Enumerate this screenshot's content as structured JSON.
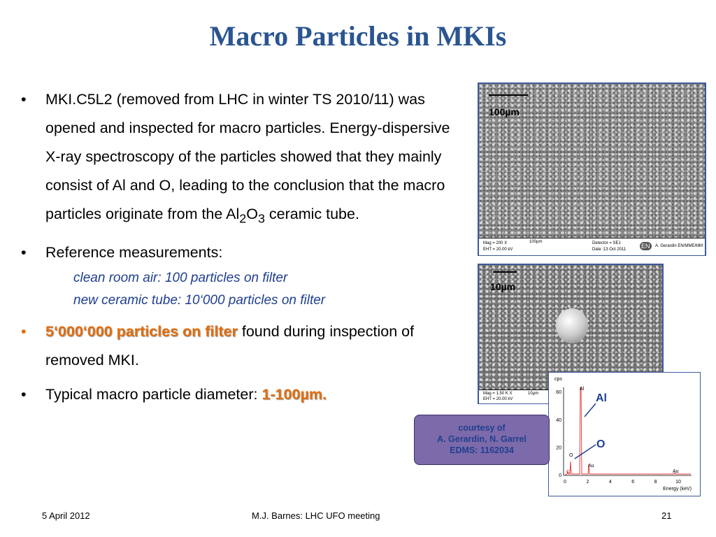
{
  "title": "Macro Particles in MKIs",
  "bullets": [
    {
      "parts": [
        "MKI.C5L2 (removed from LHC in winter TS 2010/11) was opened and inspected for macro particles.  Energy-dispersive X-ray spectroscopy of the particles showed that they mainly consist of Al and O, leading to the conclusion that the macro particles originate from the Al",
        "2",
        "O",
        "3",
        " ceramic tube."
      ]
    },
    {
      "text": "Reference measurements:",
      "subitems": [
        "clean room air: 100 particles on filter",
        "new ceramic tube: 10‘000 particles on filter"
      ]
    },
    {
      "highlight": "5‘000‘000 particles on filter",
      "text": " found during inspection of removed MKI."
    },
    {
      "text": "Typical macro particle diameter: ",
      "highlight": "1-100µm."
    }
  ],
  "image1": {
    "scale": "100µm",
    "info": [
      "Mag =    200 X",
      "EHT = 20.00 kV",
      "100µm",
      "Detector = SE1",
      "Date :13 Oct 2011",
      "EN",
      "A. Gerardin EN/MME/MM"
    ]
  },
  "image2": {
    "scale": "10µm",
    "info": [
      "Mag =   1.50 K X",
      "EHT = 20.00 kV",
      "10µm"
    ]
  },
  "spectrum": {
    "ylabel": "cps",
    "xlabel": "Energy (keV)",
    "yticks": [
      0,
      20,
      40,
      60
    ],
    "xticks": [
      0,
      2,
      4,
      6,
      8,
      10
    ],
    "peaks": [
      "Al",
      "C",
      "O",
      "Au",
      "Au"
    ],
    "callouts": [
      "Al",
      "O"
    ]
  },
  "courtesy": [
    "courtesy of",
    "A. Gerardin, N. Garrel",
    "EDMS: 1162034"
  ],
  "footer": {
    "date": "5 April 2012",
    "center": "M.J. Barnes:  LHC UFO meeting",
    "page": "21"
  }
}
